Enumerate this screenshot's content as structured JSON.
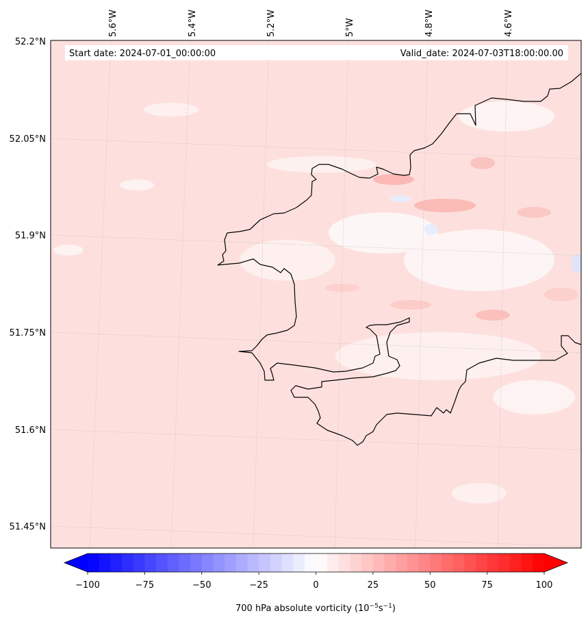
{
  "map": {
    "header_left": "Start date: 2024-07-01_00:00:00",
    "header_right": "Valid_date: 2024-07-03T18:00:00.00",
    "lon_labels": [
      "5.6°W",
      "5.4°W",
      "5.2°W",
      "5°W",
      "4.8°W",
      "4.6°W"
    ],
    "lat_labels": [
      "52.2°N",
      "52.05°N",
      "51.9°N",
      "51.75°N",
      "51.6°N",
      "51.45°N"
    ],
    "background_color": "#fde0de",
    "coastline_color": "#000000",
    "gridlines": true
  },
  "colorbar": {
    "ticks": [
      "−100",
      "−75",
      "−50",
      "−25",
      "0",
      "25",
      "50",
      "75",
      "100"
    ],
    "label": "700 hPa absolute vorticity (10",
    "label_exp1": "−5",
    "label_mid": "s",
    "label_exp2": "−1",
    "label_end": ")",
    "vmin": -100,
    "vmax": 100,
    "min_color": "#0000ff",
    "max_color": "#ff0000",
    "extend": "both"
  }
}
